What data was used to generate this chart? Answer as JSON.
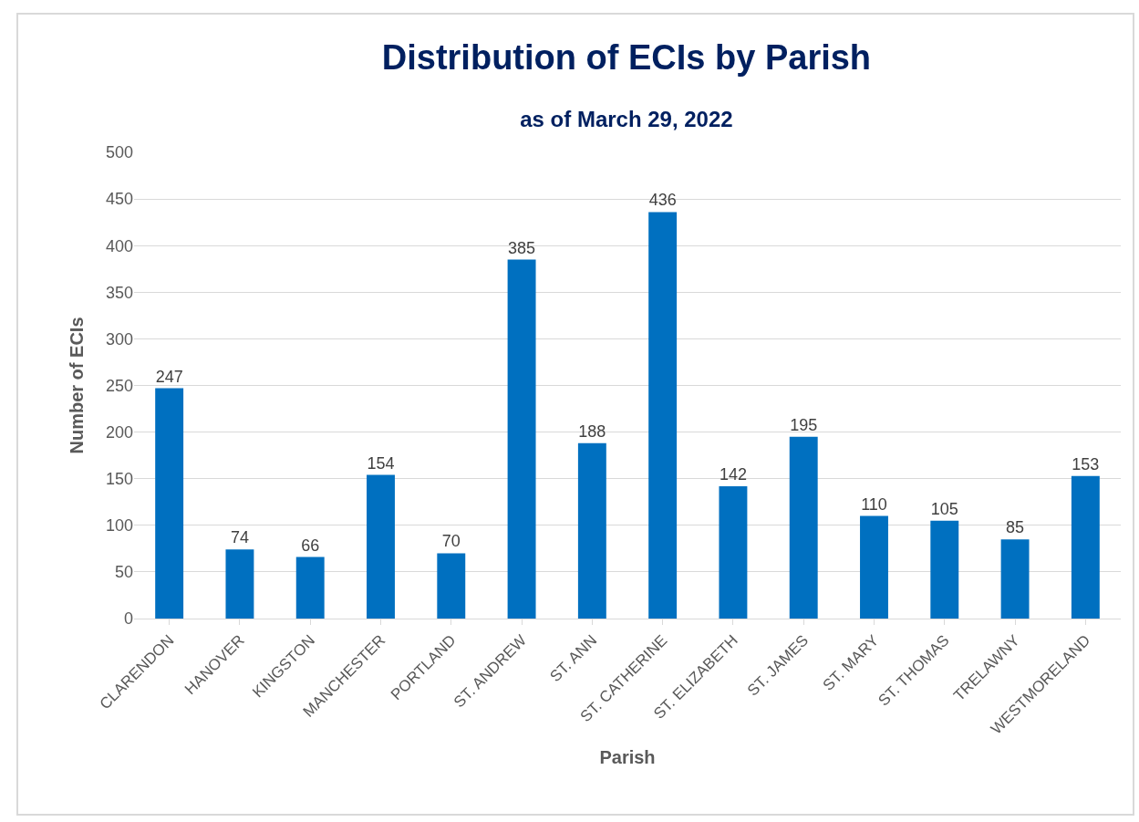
{
  "chart_data": {
    "type": "bar",
    "title": "Distribution of ECIs by Parish",
    "subtitle": "as of March 29, 2022",
    "xlabel": "Parish",
    "ylabel": "Number of ECIs",
    "categories": [
      "CLARENDON",
      "HANOVER",
      "KINGSTON",
      "MANCHESTER",
      "PORTLAND",
      "ST. ANDREW",
      "ST. ANN",
      "ST. CATHERINE",
      "ST. ELIZABETH",
      "ST. JAMES",
      "ST. MARY",
      "ST. THOMAS",
      "TRELAWNY",
      "WESTMORELAND"
    ],
    "values": [
      247,
      74,
      66,
      154,
      70,
      385,
      188,
      436,
      142,
      195,
      110,
      105,
      85,
      153
    ],
    "color": "#0070c0",
    "ylim": [
      0,
      500
    ],
    "yticks": [
      0,
      50,
      100,
      150,
      200,
      250,
      300,
      350,
      400,
      450,
      500
    ],
    "grid": "y",
    "data_labels": true
  }
}
